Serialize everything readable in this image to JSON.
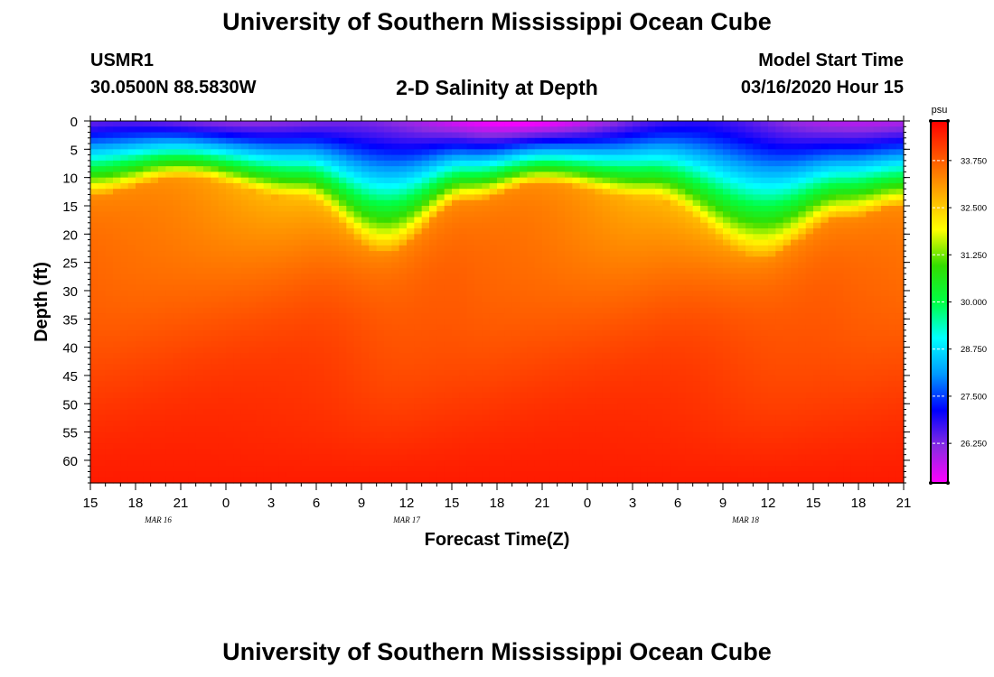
{
  "header": {
    "title": "University of Southern Mississippi Ocean Cube",
    "station_id": "USMR1",
    "coordinates": "30.0500N 88.5830W",
    "subtitle": "2-D Salinity at Depth",
    "start_label": "Model Start Time",
    "start_value": "03/16/2020 Hour 15"
  },
  "footer": {
    "title": "University of Southern Mississippi Ocean Cube"
  },
  "chart_data": {
    "type": "heatmap",
    "title": "2-D Salinity at Depth",
    "xlabel": "Forecast Time(Z)",
    "ylabel": "Depth (ft)",
    "x_ticks": [
      "15",
      "18",
      "21",
      "0",
      "3",
      "6",
      "9",
      "12",
      "15",
      "18",
      "21",
      "0",
      "3",
      "6",
      "9",
      "12",
      "15",
      "18",
      "21"
    ],
    "x_range_hours": [
      0,
      54
    ],
    "date_labels": [
      {
        "label": "MAR 16",
        "hour": 4.5
      },
      {
        "label": "MAR 17",
        "hour": 21
      },
      {
        "label": "MAR 18",
        "hour": 43.5
      }
    ],
    "y_ticks": [
      0,
      5,
      10,
      15,
      20,
      25,
      30,
      35,
      40,
      45,
      50,
      55,
      60
    ],
    "y_range": [
      0,
      64
    ],
    "y_inverted": true,
    "colorbar": {
      "unit": "psu",
      "range": [
        25.2,
        34.8
      ],
      "ticks": [
        "33.750",
        "32.500",
        "31.250",
        "30.000",
        "28.750",
        "27.500",
        "26.250"
      ],
      "colors": [
        "#ff00ff",
        "#8a2be2",
        "#0000ff",
        "#0099ff",
        "#00ffff",
        "#00ff44",
        "#33dd00",
        "#ffff00",
        "#ffaa00",
        "#ff5500",
        "#ff0000"
      ]
    },
    "halocline_depth_by_hour": [
      {
        "hour": 0,
        "depth_ft": 13
      },
      {
        "hour": 6,
        "depth_ft": 10
      },
      {
        "hour": 14,
        "depth_ft": 14
      },
      {
        "hour": 19.5,
        "depth_ft": 23
      },
      {
        "hour": 25,
        "depth_ft": 14
      },
      {
        "hour": 30,
        "depth_ft": 11
      },
      {
        "hour": 37,
        "depth_ft": 14
      },
      {
        "hour": 44.5,
        "depth_ft": 24
      },
      {
        "hour": 50,
        "depth_ft": 17
      },
      {
        "hour": 54,
        "depth_ft": 15
      }
    ],
    "surface_minimum_psu": 26.0,
    "bottom_psu": 34.5
  }
}
